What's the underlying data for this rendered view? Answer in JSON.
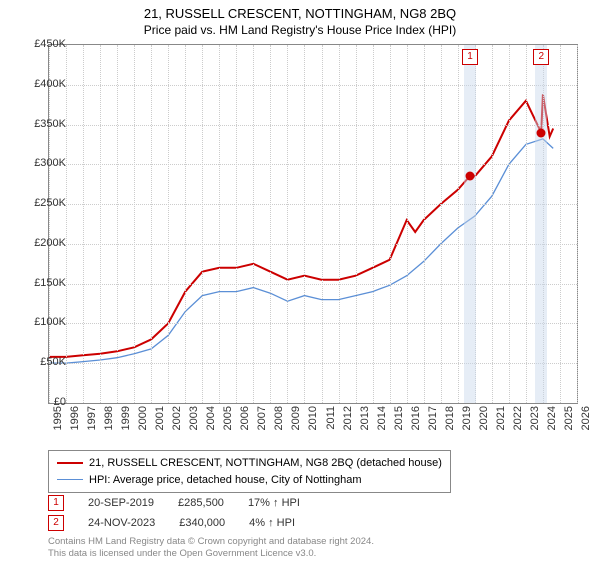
{
  "title": "21, RUSSELL CRESCENT, NOTTINGHAM, NG8 2BQ",
  "subtitle": "Price paid vs. HM Land Registry's House Price Index (HPI)",
  "chart": {
    "type": "line",
    "x_range": [
      1995,
      2026
    ],
    "y_range": [
      0,
      450000
    ],
    "y_ticks": [
      0,
      50000,
      100000,
      150000,
      200000,
      250000,
      300000,
      350000,
      400000,
      450000
    ],
    "y_tick_labels": [
      "£0",
      "£50K",
      "£100K",
      "£150K",
      "£200K",
      "£250K",
      "£300K",
      "£350K",
      "£400K",
      "£450K"
    ],
    "x_ticks": [
      1995,
      1996,
      1997,
      1998,
      1999,
      2000,
      2001,
      2002,
      2003,
      2004,
      2005,
      2006,
      2007,
      2008,
      2009,
      2010,
      2011,
      2012,
      2013,
      2014,
      2015,
      2016,
      2017,
      2018,
      2019,
      2020,
      2021,
      2022,
      2023,
      2024,
      2025,
      2026
    ],
    "grid_color": "#cccccc",
    "border_color": "#888888",
    "background_color": "#ffffff",
    "marker_band_color": "rgba(200,215,235,0.45)",
    "series": [
      {
        "name": "21, RUSSELL CRESCENT, NOTTINGHAM, NG8 2BQ (detached house)",
        "color": "#cc0000",
        "width": 2,
        "data": [
          [
            1995,
            58000
          ],
          [
            1996,
            58000
          ],
          [
            1997,
            60000
          ],
          [
            1998,
            62000
          ],
          [
            1999,
            65000
          ],
          [
            2000,
            70000
          ],
          [
            2001,
            80000
          ],
          [
            2002,
            100000
          ],
          [
            2003,
            140000
          ],
          [
            2004,
            165000
          ],
          [
            2005,
            170000
          ],
          [
            2006,
            170000
          ],
          [
            2007,
            175000
          ],
          [
            2008,
            165000
          ],
          [
            2009,
            155000
          ],
          [
            2010,
            160000
          ],
          [
            2011,
            155000
          ],
          [
            2012,
            155000
          ],
          [
            2013,
            160000
          ],
          [
            2014,
            170000
          ],
          [
            2015,
            180000
          ],
          [
            2016,
            230000
          ],
          [
            2016.5,
            215000
          ],
          [
            2017,
            230000
          ],
          [
            2018,
            250000
          ],
          [
            2019,
            268000
          ],
          [
            2019.72,
            285500
          ],
          [
            2020,
            285000
          ],
          [
            2021,
            310000
          ],
          [
            2022,
            355000
          ],
          [
            2023,
            380000
          ],
          [
            2023.9,
            340000
          ],
          [
            2024,
            388000
          ],
          [
            2024.4,
            335000
          ],
          [
            2024.6,
            345000
          ]
        ]
      },
      {
        "name": "HPI: Average price, detached house, City of Nottingham",
        "color": "#5b8fd6",
        "width": 1.3,
        "data": [
          [
            1995,
            50000
          ],
          [
            1996,
            50000
          ],
          [
            1997,
            52000
          ],
          [
            1998,
            54000
          ],
          [
            1999,
            57000
          ],
          [
            2000,
            62000
          ],
          [
            2001,
            68000
          ],
          [
            2002,
            85000
          ],
          [
            2003,
            115000
          ],
          [
            2004,
            135000
          ],
          [
            2005,
            140000
          ],
          [
            2006,
            140000
          ],
          [
            2007,
            145000
          ],
          [
            2008,
            138000
          ],
          [
            2009,
            128000
          ],
          [
            2010,
            135000
          ],
          [
            2011,
            130000
          ],
          [
            2012,
            130000
          ],
          [
            2013,
            135000
          ],
          [
            2014,
            140000
          ],
          [
            2015,
            148000
          ],
          [
            2016,
            160000
          ],
          [
            2017,
            178000
          ],
          [
            2018,
            200000
          ],
          [
            2019,
            220000
          ],
          [
            2020,
            235000
          ],
          [
            2021,
            260000
          ],
          [
            2022,
            300000
          ],
          [
            2023,
            325000
          ],
          [
            2024,
            332000
          ],
          [
            2024.6,
            320000
          ]
        ]
      }
    ],
    "markers": [
      {
        "n": "1",
        "x": 2019.72,
        "y": 285500,
        "color": "#cc0000"
      },
      {
        "n": "2",
        "x": 2023.9,
        "y": 340000,
        "color": "#cc0000"
      }
    ]
  },
  "legend": {
    "items": [
      {
        "label": "21, RUSSELL CRESCENT, NOTTINGHAM, NG8 2BQ (detached house)",
        "color": "#cc0000"
      },
      {
        "label": "HPI: Average price, detached house, City of Nottingham",
        "color": "#5b8fd6"
      }
    ]
  },
  "annotations": [
    {
      "n": "1",
      "date": "20-SEP-2019",
      "price": "£285,500",
      "delta": "17% ↑ HPI"
    },
    {
      "n": "2",
      "date": "24-NOV-2023",
      "price": "£340,000",
      "delta": "4% ↑ HPI"
    }
  ],
  "footer": {
    "line1": "Contains HM Land Registry data © Crown copyright and database right 2024.",
    "line2": "This data is licensed under the Open Government Licence v3.0."
  }
}
